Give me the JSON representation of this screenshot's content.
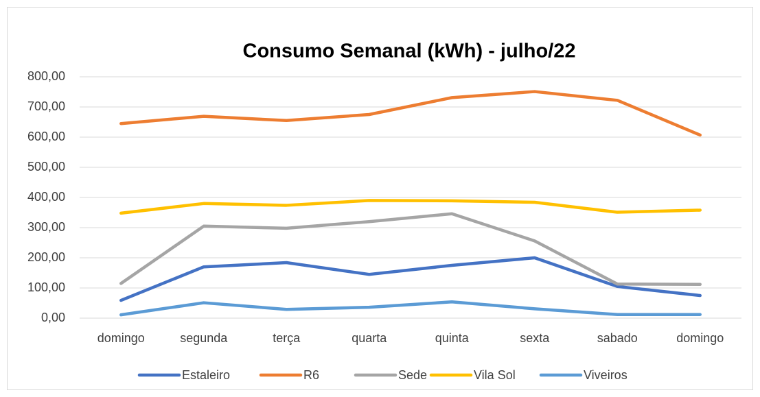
{
  "chart_data": {
    "type": "line",
    "title": "Consumo Semanal (kWh) - julho/22",
    "categories": [
      "domingo",
      "segunda",
      "terça",
      "quarta",
      "quinta",
      "sexta",
      "sabado",
      "domingo"
    ],
    "series": [
      {
        "name": "Estaleiro",
        "color": "#4472c4",
        "values": [
          59,
          170,
          184,
          145,
          175,
          200,
          105,
          75
        ]
      },
      {
        "name": "R6",
        "color": "#ed7d31",
        "values": [
          645,
          669,
          655,
          675,
          731,
          751,
          722,
          607
        ]
      },
      {
        "name": "Sede",
        "color": "#a5a5a5",
        "values": [
          115,
          305,
          298,
          320,
          346,
          256,
          113,
          112
        ]
      },
      {
        "name": "Vila Sol",
        "color": "#ffc000",
        "values": [
          348,
          380,
          374,
          390,
          389,
          384,
          351,
          358
        ]
      },
      {
        "name": "Viveiros",
        "color": "#5b9bd5",
        "values": [
          11,
          51,
          29,
          36,
          54,
          31,
          12,
          12
        ]
      }
    ],
    "ylim": [
      0,
      800
    ],
    "yticks": [
      {
        "value": 0,
        "label": "0,00"
      },
      {
        "value": 100,
        "label": "100,00"
      },
      {
        "value": 200,
        "label": "200,00"
      },
      {
        "value": 300,
        "label": "300,00"
      },
      {
        "value": 400,
        "label": "400,00"
      },
      {
        "value": 500,
        "label": "500,00"
      },
      {
        "value": 600,
        "label": "600,00"
      },
      {
        "value": 700,
        "label": "700,00"
      },
      {
        "value": 800,
        "label": "800,00"
      }
    ],
    "grid": true,
    "legend": "bottom"
  }
}
